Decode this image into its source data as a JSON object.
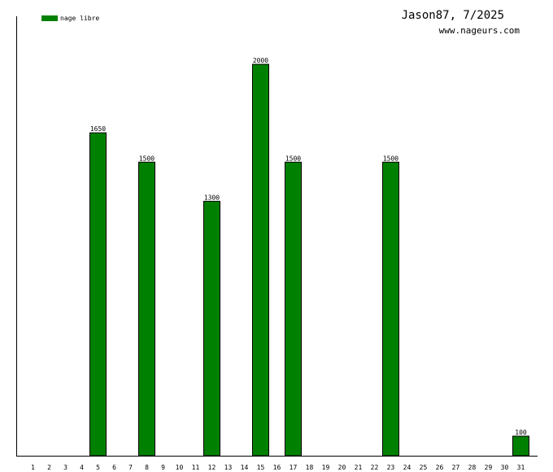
{
  "chart_data": {
    "type": "bar",
    "title": "Jason87, 7/2025",
    "subtitle": "www.nageurs.com",
    "categories": [
      "1",
      "2",
      "3",
      "4",
      "5",
      "6",
      "7",
      "8",
      "9",
      "10",
      "11",
      "12",
      "13",
      "14",
      "15",
      "16",
      "17",
      "18",
      "19",
      "20",
      "21",
      "22",
      "23",
      "24",
      "25",
      "26",
      "27",
      "28",
      "29",
      "30",
      "31"
    ],
    "series": [
      {
        "name": "nage libre",
        "color": "#008000",
        "values": [
          0,
          0,
          0,
          0,
          1650,
          0,
          0,
          1500,
          0,
          0,
          0,
          1300,
          0,
          0,
          2000,
          0,
          1500,
          0,
          0,
          0,
          0,
          0,
          1500,
          0,
          0,
          0,
          0,
          0,
          0,
          0,
          100
        ]
      }
    ],
    "ylim": [
      0,
      2000
    ],
    "grid": false,
    "legend_position": "top-left",
    "xlabel": "",
    "ylabel": ""
  }
}
